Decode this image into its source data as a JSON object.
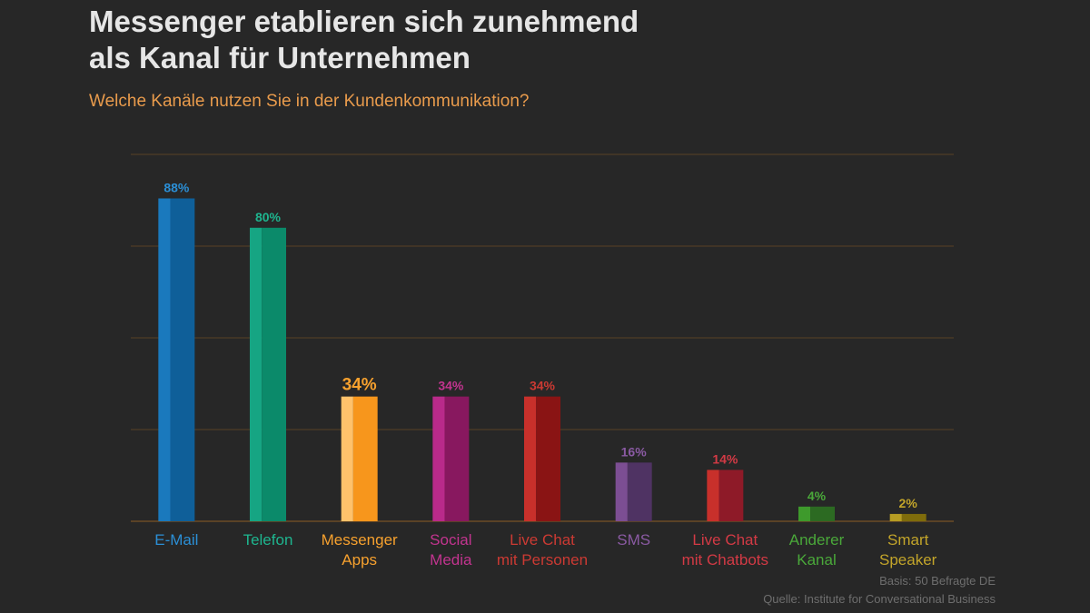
{
  "header": {
    "title_line1": "Messenger etablieren sich zunehmend",
    "title_line2": "als Kanal für Unternehmen",
    "subtitle": "Welche Kanäle nutzen Sie in der Kundenkommunikation?"
  },
  "footer": {
    "basis": "Basis: 50 Befragte DE",
    "source": "Quelle: Institute for Conversational Business"
  },
  "chart_data": {
    "type": "bar",
    "title": "Welche Kanäle nutzen Sie in der Kundenkommunikation?",
    "ylim": [
      0,
      100
    ],
    "grid": true,
    "legend": "none",
    "categories": [
      [
        "E-Mail"
      ],
      [
        "Telefon"
      ],
      [
        "Messenger",
        "Apps"
      ],
      [
        "Social",
        "Media"
      ],
      [
        "Live Chat",
        "mit Personen"
      ],
      [
        "SMS"
      ],
      [
        "Live Chat",
        "mit Chatbots"
      ],
      [
        "Anderer",
        "Kanal"
      ],
      [
        "Smart",
        "Speaker"
      ]
    ],
    "values": [
      88,
      80,
      34,
      34,
      34,
      16,
      14,
      4,
      2
    ],
    "value_labels": [
      "88%",
      "80%",
      "34%",
      "34%",
      "34%",
      "16%",
      "14%",
      "4%",
      "2%"
    ],
    "colors": [
      {
        "light": "#1a79bd",
        "dark": "#0f5f99",
        "text": "#2b8fd6"
      },
      {
        "light": "#16a583",
        "dark": "#0b8a6a",
        "text": "#1eb58f"
      },
      {
        "light": "#ffc26b",
        "dark": "#f7961c",
        "text": "#f7a12e"
      },
      {
        "light": "#b92a8a",
        "dark": "#88185f",
        "text": "#c2348f"
      },
      {
        "light": "#c8302b",
        "dark": "#8a1414",
        "text": "#cc3a33"
      },
      {
        "light": "#7c4e93",
        "dark": "#4f3363",
        "text": "#8a5aa3"
      },
      {
        "light": "#c8302b",
        "dark": "#8e1a28",
        "text": "#d33a45"
      },
      {
        "light": "#3e9a2c",
        "dark": "#2c6a22",
        "text": "#4aa83a"
      },
      {
        "light": "#b69c23",
        "dark": "#7f6c0b",
        "text": "#c3a52a"
      }
    ],
    "grid_color": "#5a4226",
    "highlight_index": 2
  }
}
